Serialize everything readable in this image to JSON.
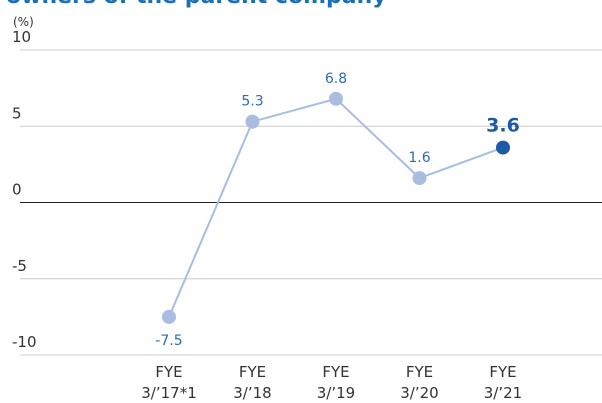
{
  "chart_data": {
    "type": "line",
    "title": "owners of the parent company",
    "y_label": "(%)",
    "categories": [
      [
        "FYE",
        "3/’17*1"
      ],
      [
        "FYE",
        "3/’18"
      ],
      [
        "FYE",
        "3/’19"
      ],
      [
        "FYE",
        "3/’20"
      ],
      [
        "FYE",
        "3/’21"
      ]
    ],
    "values": [
      -7.5,
      5.3,
      6.8,
      1.6,
      3.6
    ],
    "color": "#a9bde1",
    "label_color": "#2b6cb3",
    "highlight": 4,
    "highlight_color": "#1a5aa6",
    "ylim": [
      -10,
      10
    ],
    "yticks": [
      -10,
      -5,
      0,
      5,
      10
    ],
    "grid": true
  }
}
